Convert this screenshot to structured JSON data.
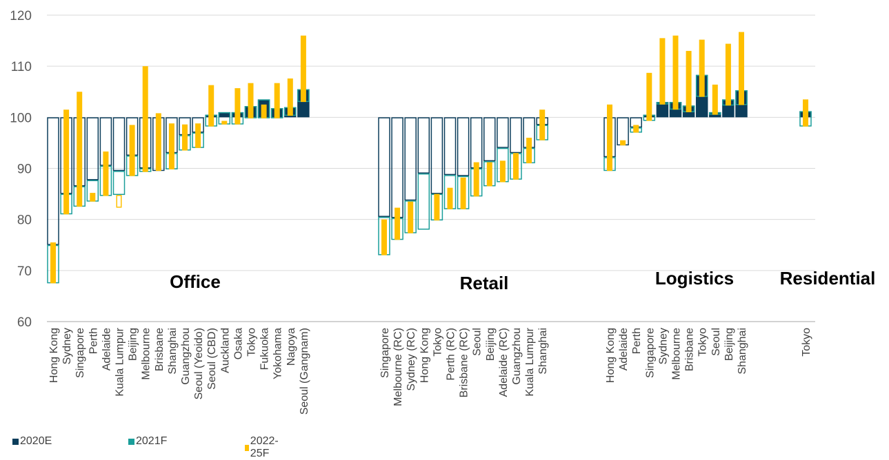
{
  "chart_data": {
    "type": "bar",
    "subtype": "waterfall-index",
    "baseline": 100,
    "ylim": [
      60,
      120
    ],
    "yticks": [
      60,
      70,
      80,
      90,
      100,
      110,
      120
    ],
    "grid": true,
    "legend_position": "bottom-left",
    "legend": [
      "2020E",
      "2021F",
      "2022-25F"
    ],
    "colors": {
      "2020E": "#0b3d5b",
      "2021F": "#1a9e9a",
      "2022-25F": "#ffc000",
      "grid": "#d9d9d9",
      "axis": "#a6a6a6"
    },
    "groups": [
      {
        "name": "Office",
        "cities": [
          {
            "label": "Hong Kong",
            "v2020": 75,
            "v2021": 67.5,
            "v2025": 75.5
          },
          {
            "label": "Sydney",
            "v2020": 85,
            "v2021": 81,
            "v2025": 101.5
          },
          {
            "label": "Singapore",
            "v2020": 86.5,
            "v2021": 82.5,
            "v2025": 105
          },
          {
            "label": "Perth",
            "v2020": 87.7,
            "v2021": 83.5,
            "v2025": 85.2
          },
          {
            "label": "Adelaide",
            "v2020": 90.5,
            "v2021": 84.6,
            "v2025": 93.3
          },
          {
            "label": "Kuala Lumpur",
            "v2020": 89.5,
            "v2021": 84.8,
            "v2025": 82.3
          },
          {
            "label": "Beijing",
            "v2020": 92.5,
            "v2021": 88.5,
            "v2025": 98.5
          },
          {
            "label": "Melbourne",
            "v2020": 90,
            "v2021": 89.3,
            "v2025": 110
          },
          {
            "label": "Brisbane",
            "v2020": 89.5,
            "v2021": 89.5,
            "v2025": 100.8
          },
          {
            "label": "Shanghai",
            "v2020": 93,
            "v2021": 89.8,
            "v2025": 98.8
          },
          {
            "label": "Guangzhou",
            "v2020": 96.5,
            "v2021": 93.5,
            "v2025": 98.6
          },
          {
            "label": "Seoul (Yeoido)",
            "v2020": 97,
            "v2021": 94,
            "v2025": 98.8
          },
          {
            "label": "Seoul (CBD)",
            "v2020": 100.5,
            "v2021": 98.2,
            "v2025": 106.3
          },
          {
            "label": "Auckland",
            "v2020": 101,
            "v2021": 98.6,
            "v2025": 99.3
          },
          {
            "label": "Osaka",
            "v2020": 101,
            "v2021": 98.6,
            "v2025": 105.7
          },
          {
            "label": "Tokyo",
            "v2020": 102.2,
            "v2021": 99.8,
            "v2025": 106.7
          },
          {
            "label": "Fukuoka",
            "v2020": 103.5,
            "v2021": 99.8,
            "v2025": 102.5
          },
          {
            "label": "Yokohama",
            "v2020": 101.8,
            "v2021": 99.8,
            "v2025": 106.7
          },
          {
            "label": "Nagoya",
            "v2020": 102,
            "v2021": 100.3,
            "v2025": 107.6
          },
          {
            "label": "Seoul (Gangnam)",
            "v2020": 105.5,
            "v2021": 103,
            "v2025": 116
          }
        ]
      },
      {
        "name": "Retail",
        "cities": [
          {
            "label": "Singapore",
            "v2020": 80.5,
            "v2021": 73,
            "v2025": 80
          },
          {
            "label": "Melbourne (RC)",
            "v2020": 80.3,
            "v2021": 76,
            "v2025": 82.3
          },
          {
            "label": "Sydney (RC)",
            "v2020": 83.7,
            "v2021": 77.3,
            "v2025": 83.5
          },
          {
            "label": "Hong Kong",
            "v2020": 89,
            "v2021": 78,
            "v2025": 78
          },
          {
            "label": "Tokyo",
            "v2020": 85,
            "v2021": 79.8,
            "v2025": 85
          },
          {
            "label": "Perth (RC)",
            "v2020": 88.7,
            "v2021": 82,
            "v2025": 86.2
          },
          {
            "label": "Brisbane (RC)",
            "v2020": 88.5,
            "v2021": 82,
            "v2025": 88.2
          },
          {
            "label": "Seoul",
            "v2020": 90,
            "v2021": 84.5,
            "v2025": 91.2
          },
          {
            "label": "Beijing",
            "v2020": 91.4,
            "v2021": 86.5,
            "v2025": 91.2
          },
          {
            "label": "Adelaide (RC)",
            "v2020": 94,
            "v2021": 87.3,
            "v2025": 91.5
          },
          {
            "label": "Guangzhou",
            "v2020": 93,
            "v2021": 87.8,
            "v2025": 93
          },
          {
            "label": "Kuala Lumpur",
            "v2020": 94,
            "v2021": 91,
            "v2025": 96
          },
          {
            "label": "Shanghai",
            "v2020": 98.5,
            "v2021": 95.5,
            "v2025": 101.5
          }
        ]
      },
      {
        "name": "Logistics",
        "cities": [
          {
            "label": "Hong Kong",
            "v2020": 92.2,
            "v2021": 89.5,
            "v2025": 102.5
          },
          {
            "label": "Adelaide",
            "v2020": 94.5,
            "v2021": 94.5,
            "v2025": 95.5
          },
          {
            "label": "Perth",
            "v2020": 98,
            "v2021": 97,
            "v2025": 98.5
          },
          {
            "label": "Singapore",
            "v2020": 100.5,
            "v2021": 99.3,
            "v2025": 108.7
          },
          {
            "label": "Sydney",
            "v2020": 103,
            "v2021": 102.5,
            "v2025": 115.5
          },
          {
            "label": "Melbourne",
            "v2020": 103,
            "v2021": 101.5,
            "v2025": 116
          },
          {
            "label": "Brisbane",
            "v2020": 102.3,
            "v2021": 101,
            "v2025": 113
          },
          {
            "label": "Tokyo",
            "v2020": 108.3,
            "v2021": 104,
            "v2025": 115.2
          },
          {
            "label": "Seoul",
            "v2020": 101,
            "v2021": 100.5,
            "v2025": 106.4
          },
          {
            "label": "Beijing",
            "v2020": 103.5,
            "v2021": 102.3,
            "v2025": 114.4
          },
          {
            "label": "Shanghai",
            "v2020": 105.3,
            "v2021": 102.4,
            "v2025": 116.7
          }
        ]
      },
      {
        "name": "Residential",
        "cities": [
          {
            "label": "Tokyo",
            "v2020": 101.2,
            "v2021": 98.2,
            "v2025": 103.5
          }
        ]
      }
    ]
  }
}
